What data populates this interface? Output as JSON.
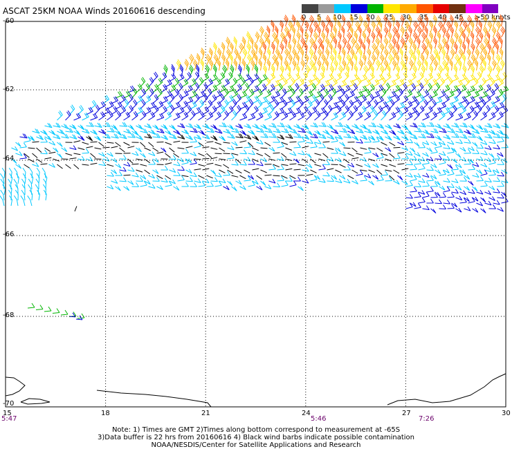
{
  "title": "ASCAT 25KM NOAA Winds 20160616 descending",
  "legend": {
    "colors": [
      "#444444",
      "#9a9a9a",
      "#00c8ff",
      "#0000dd",
      "#00b400",
      "#ffe600",
      "#ffaa00",
      "#ff5500",
      "#e60000",
      "#703010",
      "#ff00ff",
      "#8000c0"
    ],
    "ticks": [
      "0",
      "5",
      "10",
      "15",
      "20",
      "25",
      "30",
      "35",
      "40",
      "45",
      ">50 knots"
    ]
  },
  "axes": {
    "y_labels": [
      "-60",
      "-62",
      "-64",
      "-66",
      "-68",
      "-70"
    ],
    "x_labels": [
      "15",
      "18",
      "21",
      "24",
      "27",
      "30"
    ],
    "time_labels": [
      "5:47",
      "5:46",
      "7:26"
    ]
  },
  "map": {
    "lon_range": [
      15,
      30
    ],
    "lat_range": [
      -70,
      -60
    ],
    "grid": "dotted",
    "barb_color_scale_knots": [
      0,
      5,
      10,
      15,
      20,
      25,
      30,
      35,
      40,
      45,
      50
    ]
  },
  "notes": {
    "line1": "Note: 1) Times are GMT 2)Times along bottom correspond to measurement at -65S",
    "line2": "3)Data buffer is 22 hrs from 20160616 4) Black wind barbs indicate possible contamination",
    "line3": "NOAA/NESDIS/Center for Satellite Applications and Research"
  }
}
